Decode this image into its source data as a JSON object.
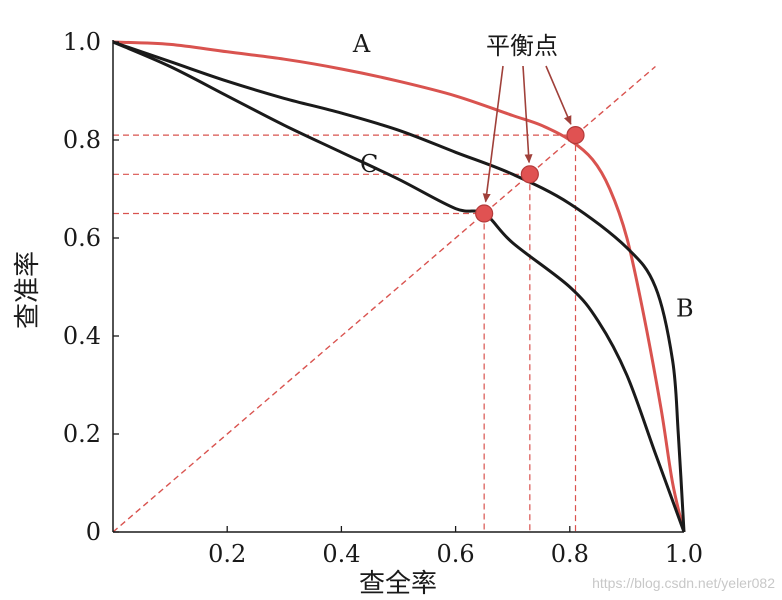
{
  "chart_data": {
    "type": "line",
    "title": "",
    "xlabel": "查全率",
    "ylabel": "查准率",
    "xlim": [
      0,
      1
    ],
    "ylim": [
      0,
      1
    ],
    "x_ticks": [
      {
        "value": 0.2,
        "label": "0.2"
      },
      {
        "value": 0.4,
        "label": "0.4"
      },
      {
        "value": 0.6,
        "label": "0.6"
      },
      {
        "value": 0.8,
        "label": "0.8"
      },
      {
        "value": 1.0,
        "label": "1.0"
      }
    ],
    "y_ticks": [
      {
        "value": 0,
        "label": "0"
      },
      {
        "value": 0.2,
        "label": "0.2"
      },
      {
        "value": 0.4,
        "label": "0.4"
      },
      {
        "value": 0.6,
        "label": "0.6"
      },
      {
        "value": 0.8,
        "label": "0.8"
      },
      {
        "value": 1.0,
        "label": "1.0"
      }
    ],
    "grid": false,
    "series": [
      {
        "name": "A",
        "color": "#d9534f",
        "points": [
          [
            0,
            1.0
          ],
          [
            0.1,
            0.995
          ],
          [
            0.2,
            0.98
          ],
          [
            0.3,
            0.965
          ],
          [
            0.4,
            0.945
          ],
          [
            0.5,
            0.92
          ],
          [
            0.6,
            0.89
          ],
          [
            0.7,
            0.85
          ],
          [
            0.75,
            0.83
          ],
          [
            0.8,
            0.8
          ],
          [
            0.84,
            0.76
          ],
          [
            0.87,
            0.7
          ],
          [
            0.9,
            0.6
          ],
          [
            0.93,
            0.44
          ],
          [
            0.96,
            0.25
          ],
          [
            0.98,
            0.1
          ],
          [
            1.0,
            0.0
          ]
        ]
      },
      {
        "name": "B",
        "color": "#1a1a1a",
        "points": [
          [
            0,
            1.0
          ],
          [
            0.1,
            0.96
          ],
          [
            0.2,
            0.92
          ],
          [
            0.3,
            0.885
          ],
          [
            0.4,
            0.855
          ],
          [
            0.5,
            0.82
          ],
          [
            0.6,
            0.775
          ],
          [
            0.7,
            0.73
          ],
          [
            0.8,
            0.67
          ],
          [
            0.9,
            0.58
          ],
          [
            0.95,
            0.5
          ],
          [
            0.98,
            0.35
          ],
          [
            0.99,
            0.2
          ],
          [
            1.0,
            0.0
          ]
        ]
      },
      {
        "name": "C",
        "color": "#1a1a1a",
        "points": [
          [
            0,
            1.0
          ],
          [
            0.1,
            0.95
          ],
          [
            0.2,
            0.89
          ],
          [
            0.3,
            0.83
          ],
          [
            0.4,
            0.775
          ],
          [
            0.5,
            0.72
          ],
          [
            0.6,
            0.66
          ],
          [
            0.65,
            0.65
          ],
          [
            0.7,
            0.59
          ],
          [
            0.8,
            0.5
          ],
          [
            0.85,
            0.43
          ],
          [
            0.9,
            0.32
          ],
          [
            0.95,
            0.16
          ],
          [
            1.0,
            0.0
          ]
        ]
      }
    ],
    "reference_line": {
      "points": [
        [
          0,
          0
        ],
        [
          0.95,
          0.95
        ]
      ],
      "style": "dashed",
      "color": "#d9534f"
    },
    "equilibrium_points": [
      {
        "x": 0.65,
        "y": 0.65
      },
      {
        "x": 0.73,
        "y": 0.73
      },
      {
        "x": 0.81,
        "y": 0.81
      }
    ],
    "annotation": "平衡点",
    "curve_labels": [
      {
        "text": "A",
        "x": 0.42,
        "y": 1.0
      },
      {
        "text": "B",
        "x": 1.0,
        "y": 0.46
      },
      {
        "text": "C",
        "x": 0.45,
        "y": 0.755
      }
    ]
  },
  "watermark": "https://blog.csdn.net/yeler082"
}
